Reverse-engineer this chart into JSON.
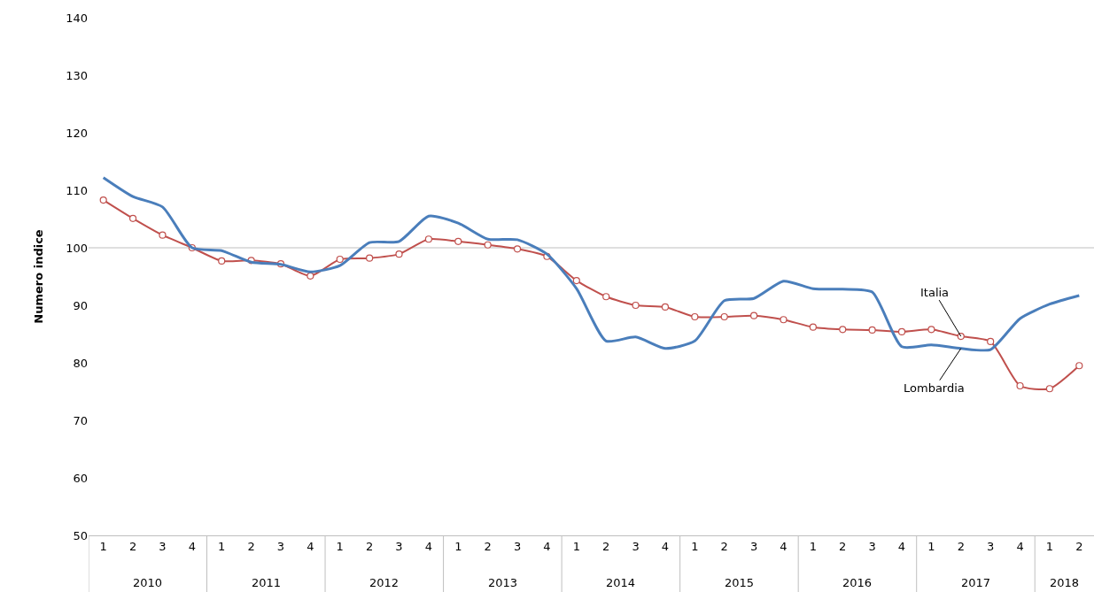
{
  "chart_data": {
    "type": "line",
    "ylabel": "Numero indice",
    "categories": [
      "1",
      "2",
      "3",
      "4",
      "1",
      "2",
      "3",
      "4",
      "1",
      "2",
      "3",
      "4",
      "1",
      "2",
      "3",
      "4",
      "1",
      "2",
      "3",
      "4",
      "1",
      "2",
      "3",
      "4",
      "1",
      "2",
      "3",
      "4",
      "1",
      "2",
      "3",
      "4",
      "1",
      "2"
    ],
    "annotations": [
      "2010",
      "2011",
      "2012",
      "2013",
      "2014",
      "2015",
      "2016",
      "2017",
      "2018"
    ],
    "ylim": [
      50,
      140
    ],
    "yticks": [
      50,
      60,
      70,
      80,
      90,
      100,
      110,
      120,
      130,
      140
    ],
    "grid": false,
    "legend": false,
    "ref_lines": [
      {
        "axis": "y",
        "value": 100,
        "color": "#bfbfbf"
      }
    ],
    "series": [
      {
        "name": "Italia",
        "color": "#c0504d",
        "marker": "circle",
        "values": [
          108.3,
          105.1,
          102.2,
          100,
          97.7,
          97.8,
          97.2,
          95.1,
          98,
          98.2,
          98.9,
          101.5,
          101.1,
          100.5,
          99.8,
          98.5,
          94.3,
          91.5,
          90,
          89.7,
          88,
          88,
          88.2,
          87.5,
          86.2,
          85.8,
          85.7,
          85.4,
          85.8,
          84.6,
          83.7,
          76,
          75.5,
          79.5
        ]
      },
      {
        "name": "Lombardia",
        "color": "#4a7ebb",
        "marker": "none",
        "values": [
          112.2,
          108.9,
          107.1,
          100,
          99.5,
          97.5,
          97.1,
          95.8,
          96.9,
          100.9,
          101.1,
          105.5,
          104.3,
          101.5,
          101.4,
          98.9,
          92.9,
          83.8,
          84.5,
          82.5,
          83.8,
          90.8,
          91.2,
          94.2,
          92.9,
          92.8,
          92.3,
          82.8,
          83.1,
          82.5,
          82.3,
          87.7,
          90.2,
          91.7
        ]
      }
    ]
  }
}
